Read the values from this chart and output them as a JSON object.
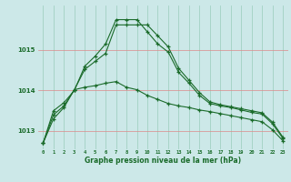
{
  "xlabel": "Graphe pression niveau de la mer (hPa)",
  "bg_color": "#cce8e8",
  "grid_color": "#99ccbb",
  "line_color": "#1a6b2a",
  "hours": [
    0,
    1,
    2,
    3,
    4,
    5,
    6,
    7,
    8,
    9,
    10,
    11,
    12,
    13,
    14,
    15,
    16,
    17,
    18,
    19,
    20,
    21,
    22,
    23
  ],
  "line1": [
    1012.7,
    1013.5,
    1013.7,
    1014.0,
    1014.6,
    1014.85,
    1015.15,
    1015.75,
    1015.75,
    1015.75,
    1015.45,
    1015.15,
    1014.95,
    1014.45,
    1014.18,
    1013.88,
    1013.68,
    1013.62,
    1013.58,
    1013.52,
    1013.46,
    1013.42,
    1013.18,
    1012.82
  ],
  "line2": [
    1012.7,
    1013.4,
    1013.62,
    1014.02,
    1014.52,
    1014.72,
    1014.92,
    1015.62,
    1015.62,
    1015.62,
    1015.62,
    1015.35,
    1015.08,
    1014.55,
    1014.25,
    1013.95,
    1013.72,
    1013.65,
    1013.6,
    1013.55,
    1013.5,
    1013.45,
    1013.22,
    1012.85
  ],
  "line3": [
    1012.7,
    1013.3,
    1013.58,
    1014.02,
    1014.08,
    1014.12,
    1014.18,
    1014.22,
    1014.08,
    1014.02,
    1013.88,
    1013.78,
    1013.68,
    1013.62,
    1013.58,
    1013.52,
    1013.48,
    1013.43,
    1013.38,
    1013.33,
    1013.28,
    1013.23,
    1013.03,
    1012.76
  ],
  "ylim": [
    1012.55,
    1016.1
  ],
  "yticks": [
    1013,
    1014,
    1015
  ],
  "xlim": [
    -0.5,
    23.5
  ]
}
